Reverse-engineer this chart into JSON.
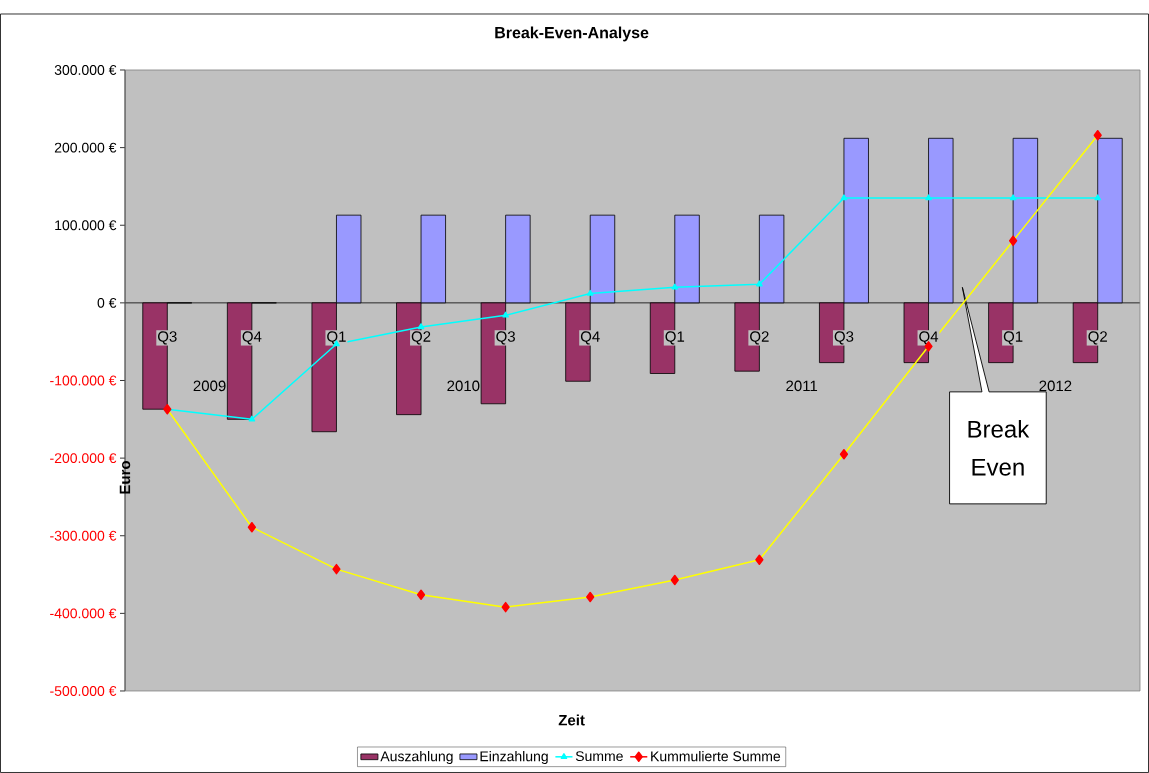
{
  "chart_data": {
    "type": "bar",
    "title": "Break-Even-Analyse",
    "xlabel": "Zeit",
    "ylabel": "Euro",
    "categories": [
      "Q3",
      "Q4",
      "Q1",
      "Q2",
      "Q3",
      "Q4",
      "Q1",
      "Q2",
      "Q3",
      "Q4",
      "Q1",
      "Q2"
    ],
    "series": [
      {
        "name": "Auszahlung",
        "color": "#993366",
        "values": [
          -137000,
          -150000,
          -166000,
          -144000,
          -130000,
          -101000,
          -91000,
          -88000,
          -77000,
          -77000,
          -77000,
          -77000
        ]
      },
      {
        "name": "Einzahlung",
        "color": "#9999ff",
        "values": [
          0,
          0,
          113000,
          113000,
          113000,
          113000,
          113000,
          113000,
          212000,
          212000,
          212000,
          212000
        ]
      },
      {
        "name": "Summe",
        "type": "line",
        "color": "#00ffff",
        "marker": "triangle",
        "values": [
          -137000,
          -150000,
          -53000,
          -31000,
          -16000,
          12000,
          20000,
          24000,
          135000,
          135000,
          135000,
          135000
        ]
      },
      {
        "name": "Kummulierte Summe",
        "type": "line",
        "color": "#ffff00",
        "marker": "diamond",
        "colors": [
          "#ff0000",
          "#ff0000",
          "#ff0000",
          "#ff0000",
          "#ff0000",
          "#ff0000",
          "#ff0000",
          "#ff0000",
          "#ff0000",
          "#ff0000",
          "#ff0000",
          "#ff0000"
        ],
        "values": [
          -137000,
          -289000,
          -343000,
          -376000,
          -392000,
          -379000,
          -357000,
          -331000,
          -195000,
          -56000,
          80000,
          216000
        ]
      }
    ],
    "ylim": [
      -500000,
      300000
    ],
    "yticks": [
      {
        "value": -500000,
        "label": "-500.000 €"
      },
      {
        "value": -400000,
        "label": "-400.000 €"
      },
      {
        "value": -300000,
        "label": "-300.000 €"
      },
      {
        "value": -200000,
        "label": "-200.000 €"
      },
      {
        "value": -100000,
        "label": "-100.000 €"
      },
      {
        "value": 0,
        "label": "0 €"
      },
      {
        "value": 100000,
        "label": "100.000 €"
      },
      {
        "value": 200000,
        "label": "200.000 €"
      },
      {
        "value": 300000,
        "label": "300.000 €"
      }
    ],
    "annotations": [
      "2009",
      "2010",
      "2011",
      "2012",
      "Break Even"
    ],
    "grid": false,
    "legend": "bottom"
  }
}
